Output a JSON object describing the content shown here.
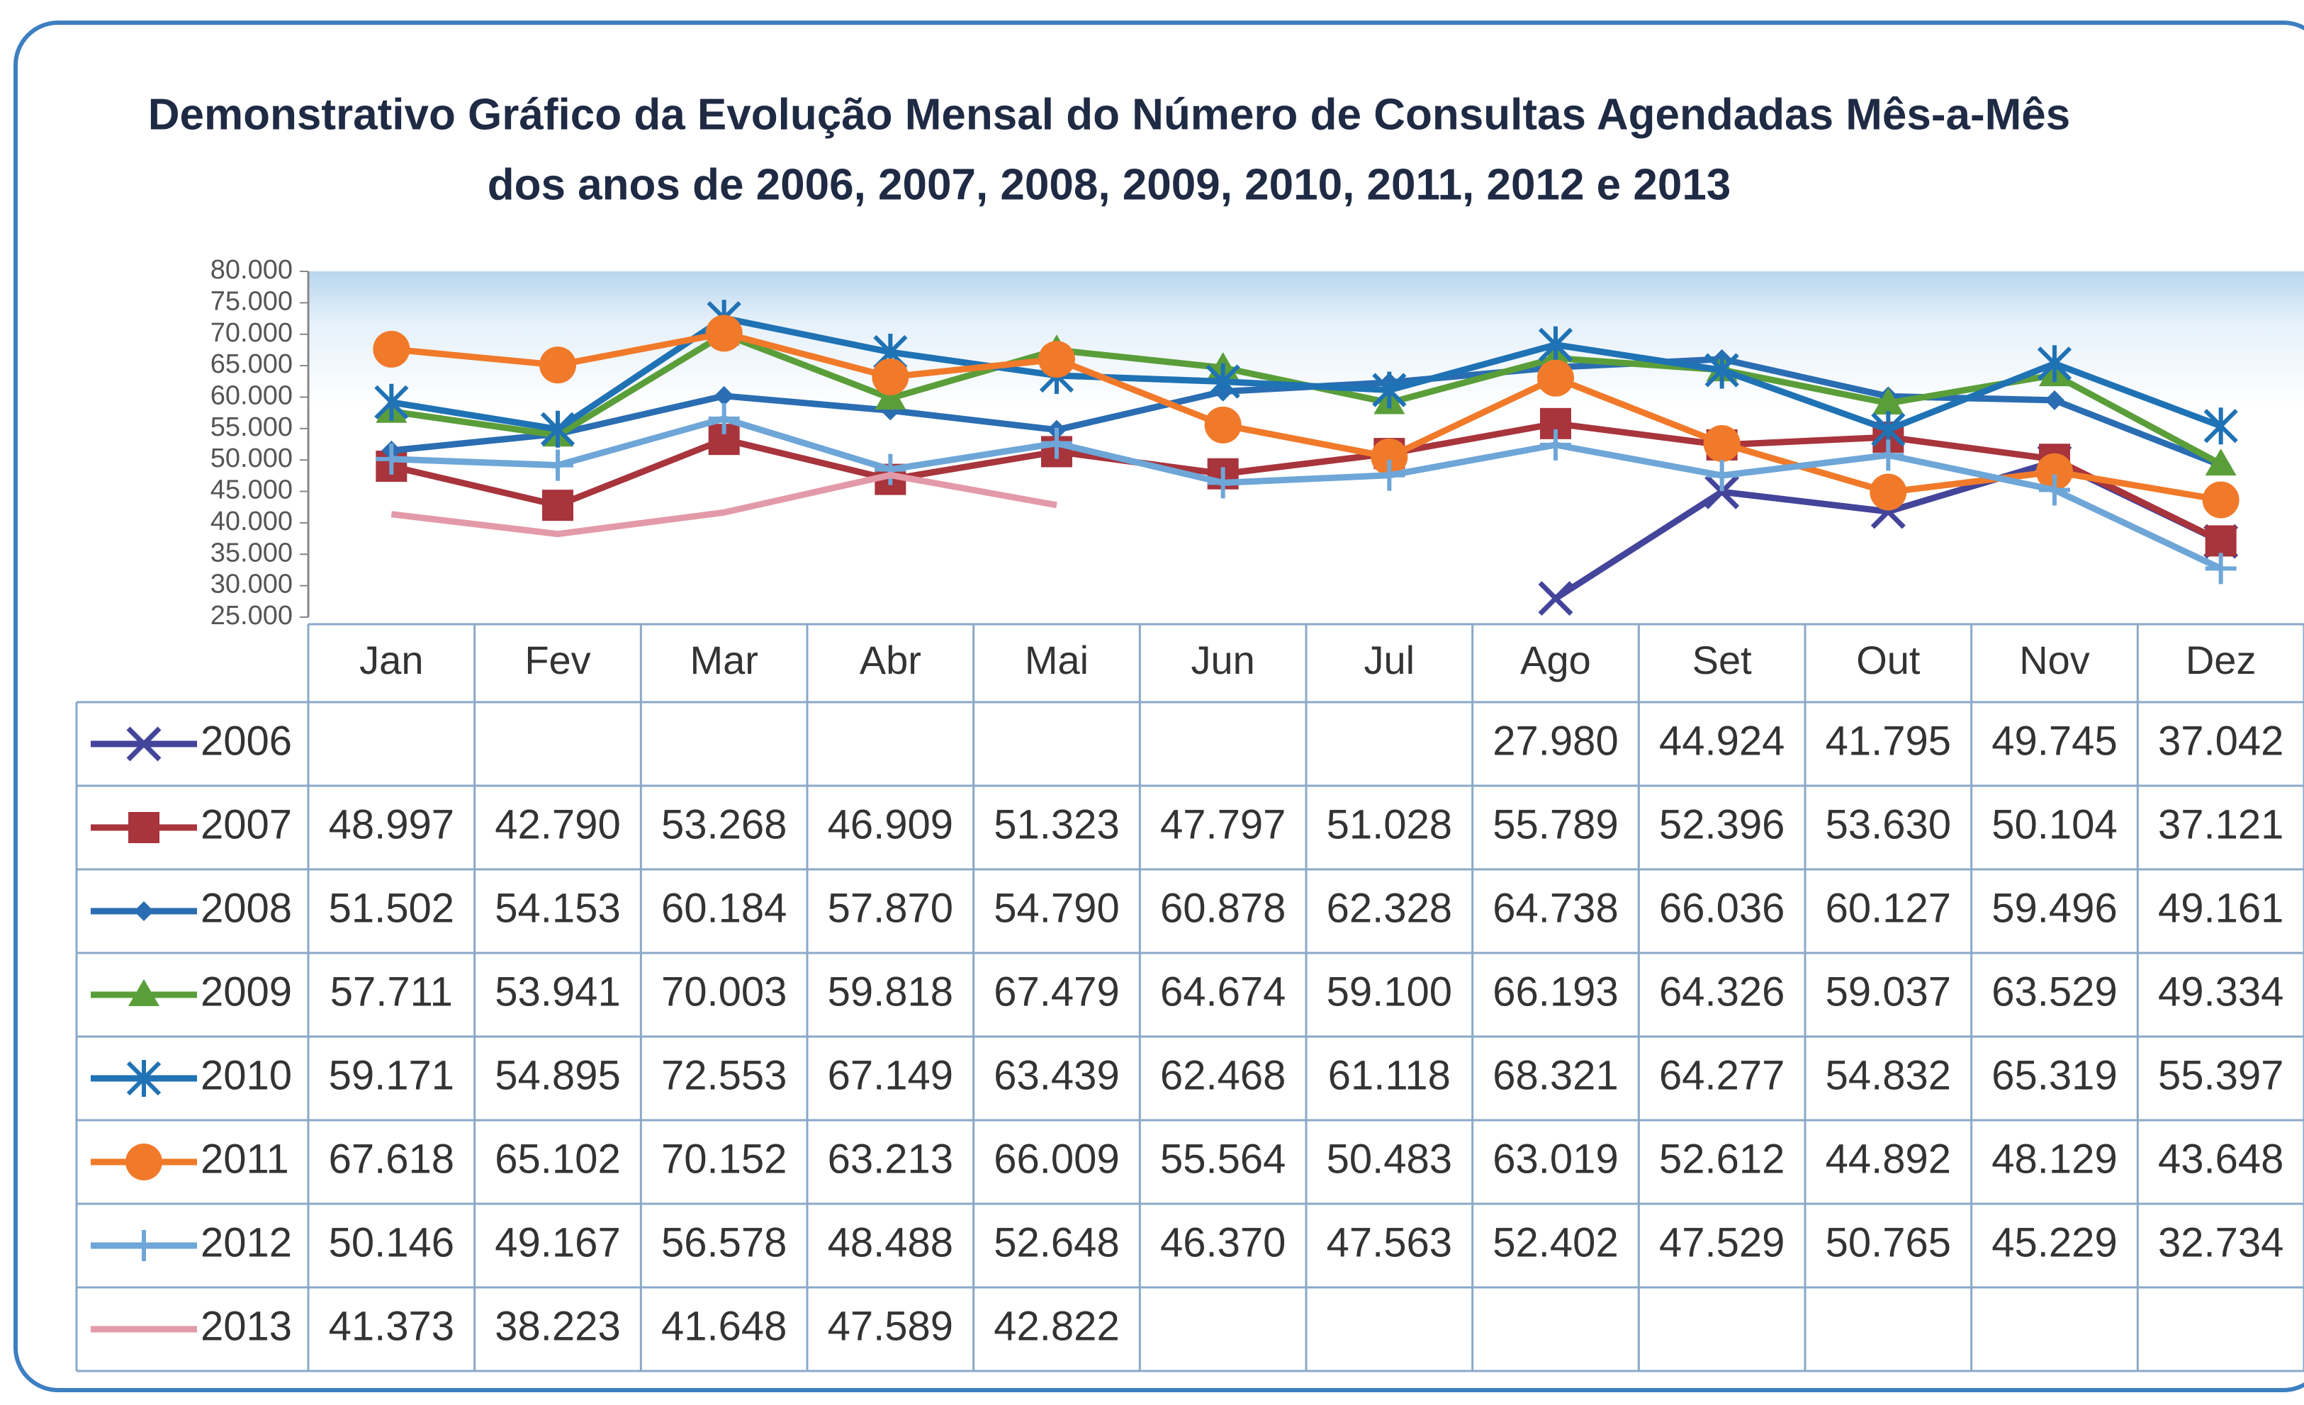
{
  "chart_data": {
    "type": "line",
    "title": "Demonstrativo Gráfico da Evolução Mensal do Número de Consultas Agendadas Mês-a-Mês",
    "subtitle": "dos anos de 2006, 2007, 2008, 2009, 2010, 2011, 2012 e 2013",
    "categories": [
      "Jan",
      "Fev",
      "Mar",
      "Abr",
      "Mai",
      "Jun",
      "Jul",
      "Ago",
      "Set",
      "Out",
      "Nov",
      "Dez"
    ],
    "ylim": [
      25000,
      80000
    ],
    "yticks": [
      {
        "value": 25000,
        "label": "25.000"
      },
      {
        "value": 30000,
        "label": "30.000"
      },
      {
        "value": 35000,
        "label": "35.000"
      },
      {
        "value": 40000,
        "label": "40.000"
      },
      {
        "value": 45000,
        "label": "45.000"
      },
      {
        "value": 50000,
        "label": "50.000"
      },
      {
        "value": 55000,
        "label": "55.000"
      },
      {
        "value": 60000,
        "label": "60.000"
      },
      {
        "value": 65000,
        "label": "65.000"
      },
      {
        "value": 70000,
        "label": "70.000"
      },
      {
        "value": 75000,
        "label": "75.000"
      },
      {
        "value": 80000,
        "label": "80.000"
      }
    ],
    "grid": false,
    "series": [
      {
        "name": "2006",
        "color": "#43449a",
        "marker": "x",
        "values": [
          null,
          null,
          null,
          null,
          null,
          null,
          null,
          27980,
          44924,
          41795,
          49745,
          37042
        ],
        "value_labels": [
          null,
          null,
          null,
          null,
          null,
          null,
          null,
          "27.980",
          "44.924",
          "41.795",
          "49.745",
          "37.042"
        ]
      },
      {
        "name": "2007",
        "color": "#a8343c",
        "marker": "square",
        "values": [
          48997,
          42790,
          53268,
          46909,
          51323,
          47797,
          51028,
          55789,
          52396,
          53630,
          50104,
          37121
        ],
        "value_labels": [
          "48.997",
          "42.790",
          "53.268",
          "46.909",
          "51.323",
          "47.797",
          "51.028",
          "55.789",
          "52.396",
          "53.630",
          "50.104",
          "37.121"
        ]
      },
      {
        "name": "2008",
        "color": "#2a6db2",
        "marker": "diamond",
        "values": [
          51502,
          54153,
          60184,
          57870,
          54790,
          60878,
          62328,
          64738,
          66036,
          60127,
          59496,
          49161
        ],
        "value_labels": [
          "51.502",
          "54.153",
          "60.184",
          "57.870",
          "54.790",
          "60.878",
          "62.328",
          "64.738",
          "66.036",
          "60.127",
          "59.496",
          "49.161"
        ]
      },
      {
        "name": "2009",
        "color": "#5a9e3a",
        "marker": "triangle",
        "values": [
          57711,
          53941,
          70003,
          59818,
          67479,
          64674,
          59100,
          66193,
          64326,
          59037,
          63529,
          49334
        ],
        "value_labels": [
          "57.711",
          "53.941",
          "70.003",
          "59.818",
          "67.479",
          "64.674",
          "59.100",
          "66.193",
          "64.326",
          "59.037",
          "63.529",
          "49.334"
        ]
      },
      {
        "name": "2010",
        "color": "#1f72b4",
        "marker": "star",
        "values": [
          59171,
          54895,
          72553,
          67149,
          63439,
          62468,
          61118,
          68321,
          64277,
          54832,
          65319,
          55397
        ],
        "value_labels": [
          "59.171",
          "54.895",
          "72.553",
          "67.149",
          "63.439",
          "62.468",
          "61.118",
          "68.321",
          "64.277",
          "54.832",
          "65.319",
          "55.397"
        ]
      },
      {
        "name": "2011",
        "color": "#f07a2a",
        "marker": "circle",
        "values": [
          67618,
          65102,
          70152,
          63213,
          66009,
          55564,
          50483,
          63019,
          52612,
          44892,
          48129,
          43648
        ],
        "value_labels": [
          "67.618",
          "65.102",
          "70.152",
          "63.213",
          "66.009",
          "55.564",
          "50.483",
          "63.019",
          "52.612",
          "44.892",
          "48.129",
          "43.648"
        ]
      },
      {
        "name": "2012",
        "color": "#6ea6d8",
        "marker": "plus",
        "values": [
          50146,
          49167,
          56578,
          48488,
          52648,
          46370,
          47563,
          52402,
          47529,
          50765,
          45229,
          32734
        ],
        "value_labels": [
          "50.146",
          "49.167",
          "56.578",
          "48.488",
          "52.648",
          "46.370",
          "47.563",
          "52.402",
          "47.529",
          "50.765",
          "45.229",
          "32.734"
        ]
      },
      {
        "name": "2013",
        "color": "#e39aa8",
        "marker": "none",
        "values": [
          41373,
          38223,
          41648,
          47589,
          42822,
          null,
          null,
          null,
          null,
          null,
          null,
          null
        ],
        "value_labels": [
          "41.373",
          "38.223",
          "41.648",
          "47.589",
          "42.822",
          null,
          null,
          null,
          null,
          null,
          null,
          null
        ]
      }
    ]
  }
}
